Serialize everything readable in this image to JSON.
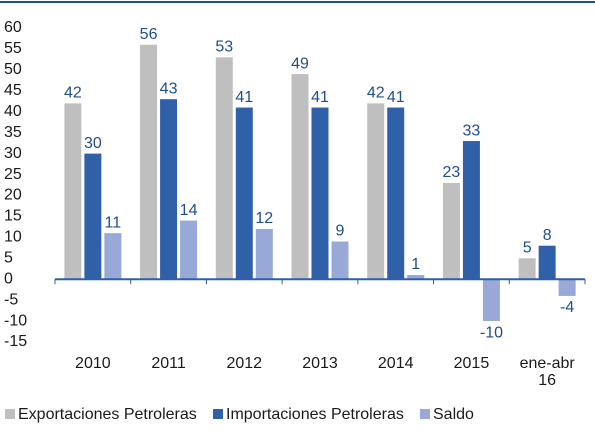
{
  "chart_data": {
    "type": "bar",
    "categories": [
      "2010",
      "2011",
      "2012",
      "2013",
      "2014",
      "2015",
      "ene-abr 16"
    ],
    "series": [
      {
        "name": "Exportaciones Petroleras",
        "color": "#bfbfbf",
        "values": [
          42,
          56,
          53,
          49,
          42,
          23,
          5
        ]
      },
      {
        "name": "Importaciones Petroleras",
        "color": "#3061a8",
        "values": [
          30,
          43,
          41,
          41,
          41,
          33,
          8
        ]
      },
      {
        "name": "Saldo",
        "color": "#98a9d8",
        "values": [
          11,
          14,
          12,
          9,
          1,
          -10,
          -4
        ]
      }
    ],
    "ylim": [
      -15,
      60
    ],
    "yticks": [
      -15,
      -10,
      -5,
      0,
      5,
      10,
      15,
      20,
      25,
      30,
      35,
      40,
      45,
      50,
      55,
      60
    ],
    "legend": "bottom",
    "grid": false
  }
}
